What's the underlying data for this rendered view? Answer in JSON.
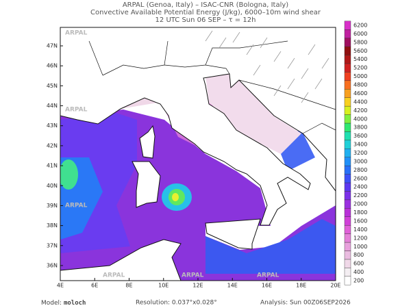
{
  "header": {
    "lines": [
      "ARPAL (Genoa, Italy)  –  ISAC-CNR (Bologna, Italy)",
      "Convective Available Potential Energy (J/kg), 6000–10m wind shear",
      "12 UTC Sun 06 SEP  –  τ = 12h"
    ]
  },
  "map": {
    "watermark": "ARPAL",
    "lat_labels": [
      "47N",
      "46N",
      "45N",
      "44N",
      "43N",
      "42N",
      "41N",
      "40N",
      "39N",
      "38N",
      "37N",
      "36N"
    ],
    "lon_labels": [
      "4E",
      "6E",
      "8E",
      "10E",
      "12E",
      "14E",
      "16E",
      "18E",
      "20E"
    ]
  },
  "colorbar": {
    "levels": [
      200,
      400,
      600,
      800,
      1000,
      1200,
      1400,
      1600,
      1800,
      2000,
      2200,
      2400,
      2600,
      2800,
      3000,
      3200,
      3400,
      3600,
      3800,
      4000,
      4200,
      4400,
      4600,
      4800,
      5000,
      5200,
      5400,
      5600,
      5800,
      6000,
      6200
    ],
    "colors": [
      "#ffffff",
      "#f4eef2",
      "#f0d8e8",
      "#eabce0",
      "#e8a0dc",
      "#e480d8",
      "#e060d8",
      "#d040d8",
      "#b830d8",
      "#9a30e0",
      "#7c30e8",
      "#5c38f0",
      "#3c50f8",
      "#2870f8",
      "#2090f8",
      "#20b0f0",
      "#20d0d8",
      "#20e0b0",
      "#30e870",
      "#80f040",
      "#d8f020",
      "#f8d020",
      "#f8a020",
      "#f87020",
      "#f04020",
      "#d02020",
      "#b01818",
      "#901010",
      "#a01060",
      "#c020a0",
      "#d830c8"
    ]
  },
  "footer": {
    "model_label": "Model:",
    "model": "moloch",
    "resolution": "Resolution: 0.037°x0.028°",
    "analysis": "Analysis: Sun 00Z06SEP2026"
  }
}
